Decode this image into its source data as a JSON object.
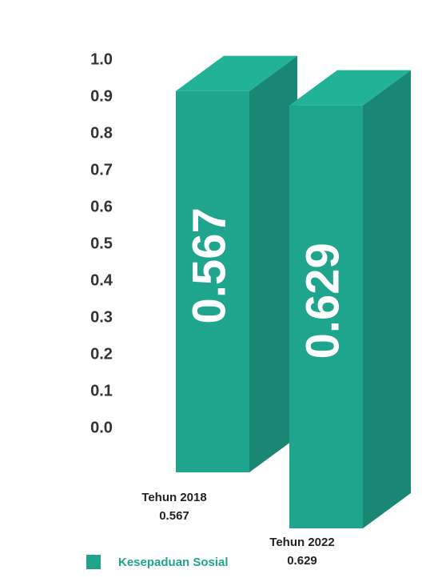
{
  "chart_data": {
    "type": "bar",
    "categories": [
      "Tehun 2018",
      "Tehun 2022"
    ],
    "series": [
      {
        "name": "Kesepaduan Sosial",
        "color": "#1fa58d",
        "values": [
          0.567,
          0.629
        ]
      }
    ],
    "ylim": [
      0,
      1
    ],
    "yticks": [
      {
        "value": 0,
        "label": "0.0"
      },
      0.1,
      0.2,
      0.3,
      0.4,
      0.5,
      0.6,
      0.7,
      0.8,
      0.9,
      {
        "value": 1,
        "label": "1.0"
      }
    ]
  }
}
